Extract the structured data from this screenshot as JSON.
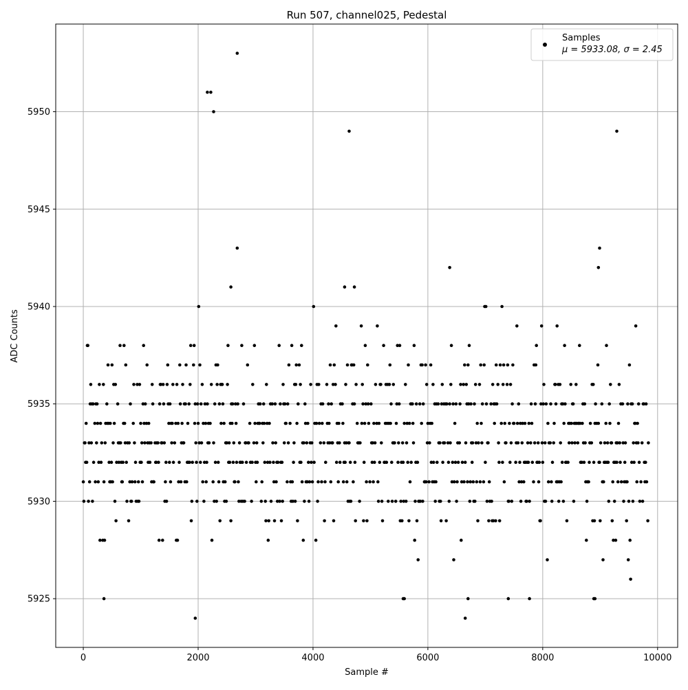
{
  "chart_data": {
    "type": "scatter",
    "title": "Run 507, channel025, Pedestal",
    "xlabel": "Sample #",
    "ylabel": "ADC Counts",
    "xlim": [
      -480,
      10350
    ],
    "ylim": [
      5922.5,
      5954.5
    ],
    "x_ticks": [
      0,
      2000,
      4000,
      6000,
      8000,
      10000
    ],
    "y_ticks": [
      5925,
      5930,
      5935,
      5940,
      5945,
      5950
    ],
    "grid": true,
    "legend_position": "top-right",
    "series": [
      {
        "name": "Samples",
        "stats_label": "μ = 5933.08, σ = 2.45",
        "color": "#000000",
        "n_samples": 9850,
        "mean": 5933.08,
        "sigma": 2.45,
        "band_min": 5926,
        "band_max": 5940,
        "outliers": [
          {
            "x": 2680,
            "y": 5953
          },
          {
            "x": 2160,
            "y": 5951
          },
          {
            "x": 2220,
            "y": 5951
          },
          {
            "x": 2270,
            "y": 5950
          },
          {
            "x": 4630,
            "y": 5949
          },
          {
            "x": 9290,
            "y": 5949
          },
          {
            "x": 2680,
            "y": 5943
          },
          {
            "x": 8990,
            "y": 5943
          },
          {
            "x": 6380,
            "y": 5942
          },
          {
            "x": 8970,
            "y": 5942
          },
          {
            "x": 2570,
            "y": 5941
          },
          {
            "x": 4550,
            "y": 5941
          },
          {
            "x": 4720,
            "y": 5941
          },
          {
            "x": 360,
            "y": 5925
          },
          {
            "x": 5570,
            "y": 5925
          },
          {
            "x": 5590,
            "y": 5925
          },
          {
            "x": 6700,
            "y": 5925
          },
          {
            "x": 7400,
            "y": 5925
          },
          {
            "x": 7770,
            "y": 5925
          },
          {
            "x": 8890,
            "y": 5925
          },
          {
            "x": 8910,
            "y": 5925
          },
          {
            "x": 1950,
            "y": 5924
          },
          {
            "x": 6650,
            "y": 5924
          }
        ]
      }
    ]
  }
}
